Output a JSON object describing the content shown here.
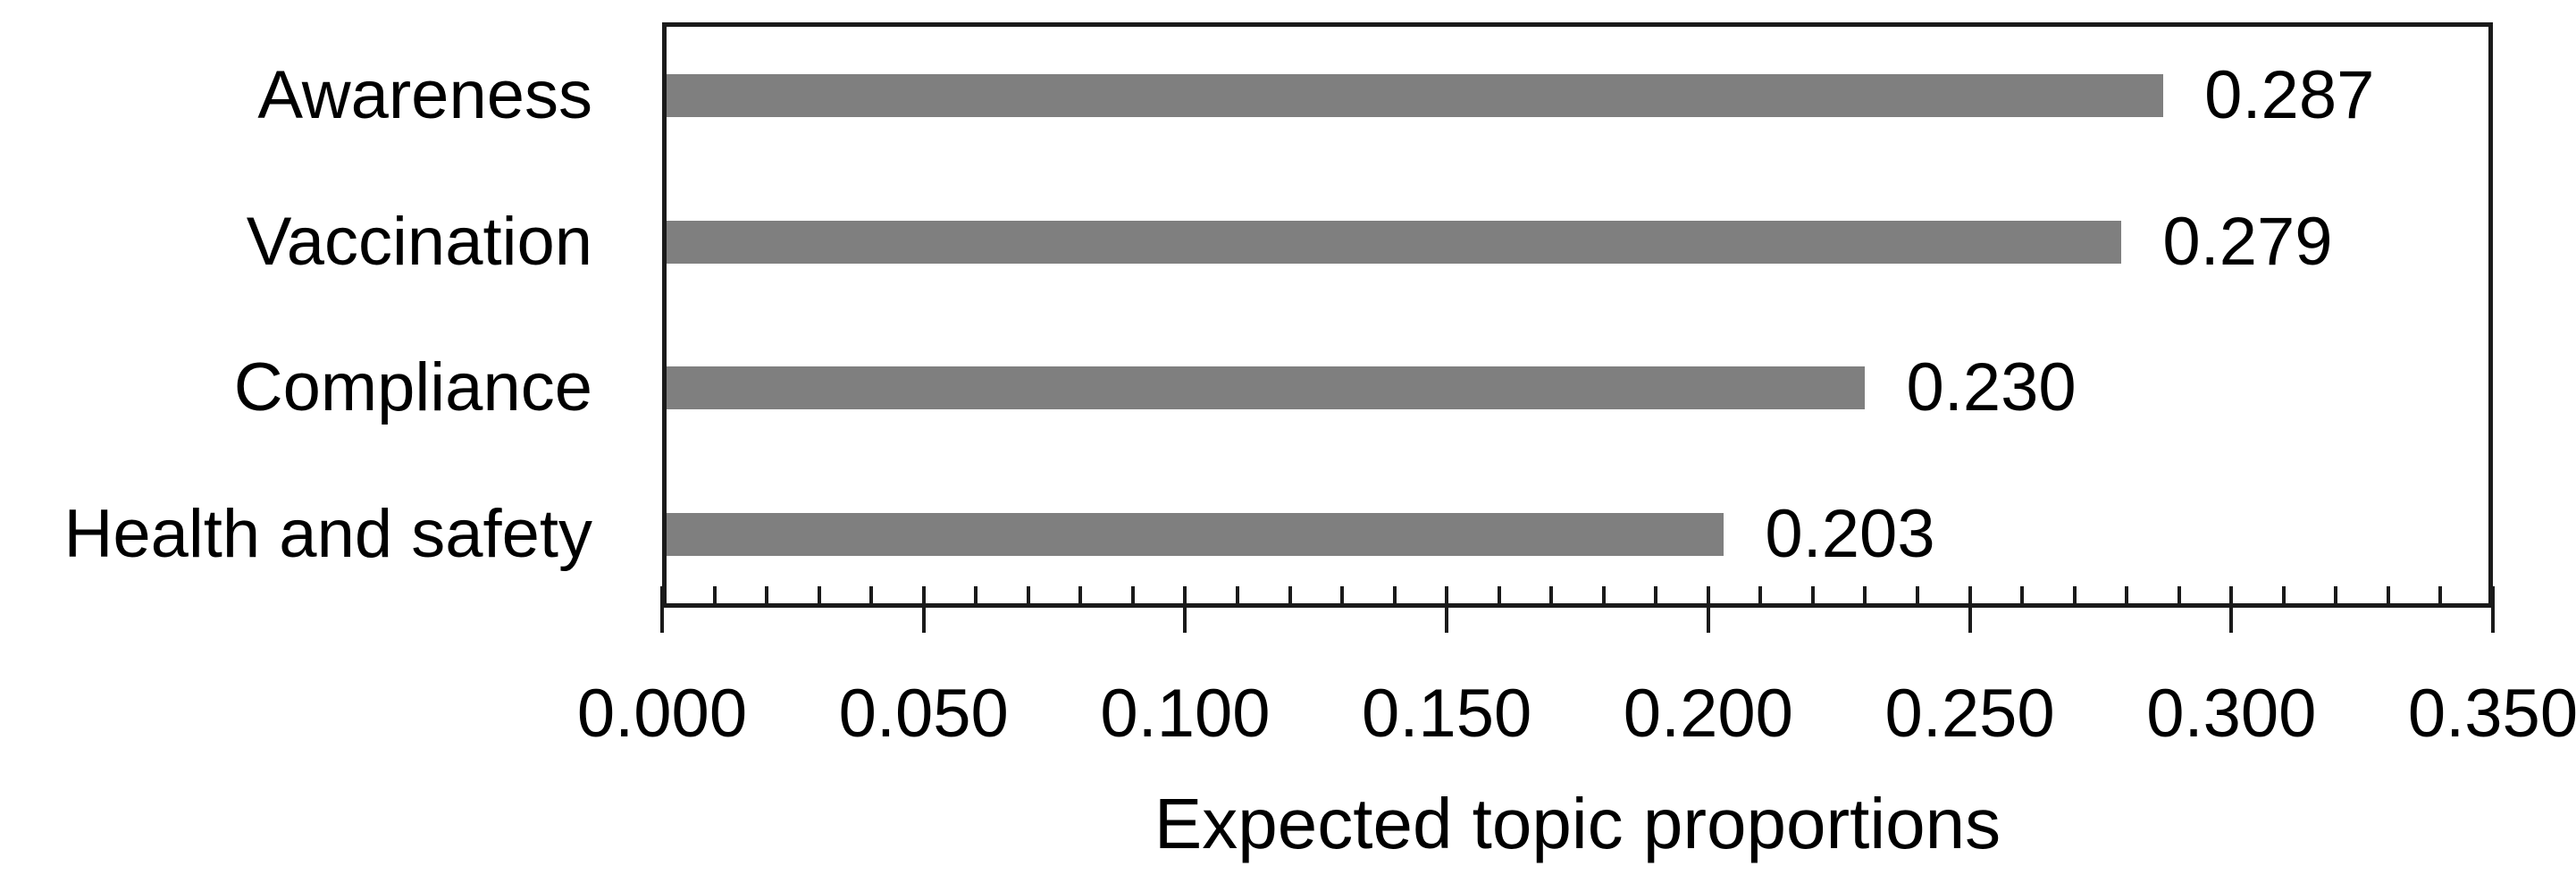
{
  "chart_data": {
    "type": "bar",
    "orientation": "horizontal",
    "title": "",
    "xlabel": "Expected topic proportions",
    "ylabel": "",
    "categories": [
      "Awareness",
      "Vaccination",
      "Compliance",
      "Health and safety"
    ],
    "values": [
      0.287,
      0.279,
      0.23,
      0.203
    ],
    "data_labels": [
      "0.287",
      "0.279",
      "0.230",
      "0.203"
    ],
    "xlim": [
      0.0,
      0.35
    ],
    "x_major_unit": 0.05,
    "x_minor_unit": 0.01,
    "x_tick_labels": [
      "0.000",
      "0.050",
      "0.100",
      "0.150",
      "0.200",
      "0.250",
      "0.300",
      "0.350"
    ],
    "grid": false,
    "legend": false,
    "bar_color": "#7f7f7f",
    "axis_color": "#1a1a1a",
    "text_color": "#000000"
  }
}
